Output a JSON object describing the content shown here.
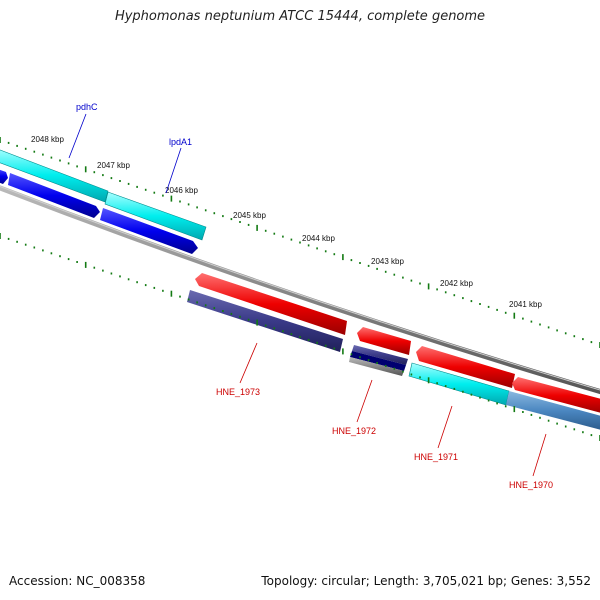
{
  "title": "Hyphomonas neptunium ATCC 15444, complete genome",
  "footer": {
    "accession": "Accession: NC_008358",
    "topology": "Topology: circular; Length: 3,705,021 bp; Genes: 3,552"
  },
  "scale_ticks": [
    "2048 kbp",
    "2047 kbp",
    "2046 kbp",
    "2045 kbp",
    "2044 kbp",
    "2043 kbp",
    "2042 kbp",
    "2041 kbp"
  ],
  "forward_gene_labels": [
    "pdhC",
    "lpdA1"
  ],
  "reverse_gene_labels": [
    "HNE_1973",
    "HNE_1972",
    "HNE_1971",
    "HNE_1970"
  ],
  "colors": {
    "forward_gene_cds": "#0000ee",
    "forward_gene_cyan": "#00eeee",
    "reverse_gene_red": "#ee0000",
    "reverse_gene_purple": "#3a3a88",
    "reverse_gene_steel": "#4a86c0",
    "backbone": "#888888",
    "tick_marks": "#137a13",
    "forward_label": "#0000cc",
    "reverse_label": "#cc0000"
  }
}
